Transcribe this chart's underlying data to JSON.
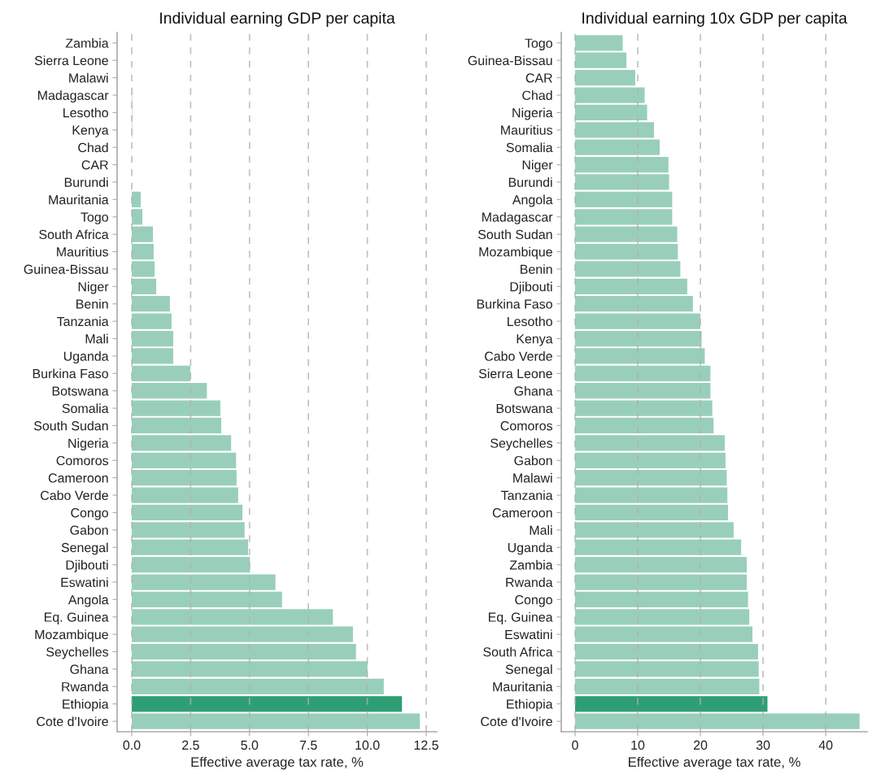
{
  "chart_data": [
    {
      "type": "bar",
      "orientation": "horizontal",
      "title": "Individual earning GDP per capita",
      "xlabel": "Effective average tax rate, %",
      "categories": [
        "Zambia",
        "Sierra Leone",
        "Malawi",
        "Madagascar",
        "Lesotho",
        "Kenya",
        "Chad",
        "CAR",
        "Burundi",
        "Mauritania",
        "Togo",
        "South Africa",
        "Mauritius",
        "Guinea-Bissau",
        "Niger",
        "Benin",
        "Tanzania",
        "Mali",
        "Uganda",
        "Burkina Faso",
        "Botswana",
        "Somalia",
        "South Sudan",
        "Nigeria",
        "Comoros",
        "Cameroon",
        "Cabo Verde",
        "Congo",
        "Gabon",
        "Senegal",
        "Djibouti",
        "Eswatini",
        "Angola",
        "Eq. Guinea",
        "Mozambique",
        "Seychelles",
        "Ghana",
        "Rwanda",
        "Ethiopia",
        "Cote d'Ivoire"
      ],
      "values": [
        0,
        0,
        0,
        0.02,
        0.02,
        0.02,
        0,
        0,
        0,
        0.38,
        0.45,
        0.9,
        0.93,
        0.97,
        1.04,
        1.62,
        1.69,
        1.76,
        1.76,
        2.49,
        3.19,
        3.76,
        3.8,
        4.22,
        4.43,
        4.45,
        4.52,
        4.7,
        4.79,
        4.94,
        5.02,
        6.1,
        6.38,
        8.54,
        9.39,
        9.52,
        10.01,
        10.7,
        11.47,
        12.23
      ],
      "colors": [
        "#99cfba",
        "#99cfba",
        "#99cfba",
        "#99cfba",
        "#99cfba",
        "#99cfba",
        "#99cfba",
        "#99cfba",
        "#99cfba",
        "#99cfba",
        "#99cfba",
        "#99cfba",
        "#99cfba",
        "#99cfba",
        "#99cfba",
        "#99cfba",
        "#99cfba",
        "#99cfba",
        "#99cfba",
        "#99cfba",
        "#99cfba",
        "#99cfba",
        "#99cfba",
        "#99cfba",
        "#99cfba",
        "#99cfba",
        "#99cfba",
        "#99cfba",
        "#99cfba",
        "#99cfba",
        "#99cfba",
        "#99cfba",
        "#99cfba",
        "#99cfba",
        "#99cfba",
        "#99cfba",
        "#99cfba",
        "#99cfba",
        "#2f9e74",
        "#99cfba"
      ],
      "xlim": [
        -0.62,
        12.95
      ],
      "xticks": [
        {
          "value": 0,
          "label": "0.0"
        },
        2.5,
        {
          "value": 5,
          "label": "5.0"
        },
        7.5,
        {
          "value": 10,
          "label": "10.0"
        },
        12.5
      ],
      "grid": "x"
    },
    {
      "type": "bar",
      "orientation": "horizontal",
      "title": "Individual earning 10x GDP per capita",
      "xlabel": "Effective average tax rate, %",
      "categories": [
        "Togo",
        "Guinea-Bissau",
        "CAR",
        "Chad",
        "Nigeria",
        "Mauritius",
        "Somalia",
        "Niger",
        "Burundi",
        "Angola",
        "Madagascar",
        "South Sudan",
        "Mozambique",
        "Benin",
        "Djibouti",
        "Burkina Faso",
        "Lesotho",
        "Kenya",
        "Cabo Verde",
        "Sierra Leone",
        "Ghana",
        "Botswana",
        "Comoros",
        "Seychelles",
        "Gabon",
        "Malawi",
        "Tanzania",
        "Cameroon",
        "Mali",
        "Uganda",
        "Zambia",
        "Rwanda",
        "Congo",
        "Eq. Guinea",
        "Eswatini",
        "South Africa",
        "Senegal",
        "Mauritania",
        "Ethiopia",
        "Cote d'Ivoire"
      ],
      "values": [
        7.6,
        8.2,
        9.6,
        11.1,
        11.5,
        12.6,
        13.5,
        14.9,
        15.0,
        15.5,
        15.5,
        16.3,
        16.4,
        16.8,
        17.9,
        18.8,
        20.0,
        20.2,
        20.7,
        21.6,
        21.6,
        21.9,
        22.1,
        23.9,
        24.0,
        24.2,
        24.3,
        24.4,
        25.3,
        26.5,
        27.4,
        27.4,
        27.6,
        27.8,
        28.3,
        29.2,
        29.3,
        29.4,
        30.7,
        45.4
      ],
      "colors": [
        "#99cfba",
        "#99cfba",
        "#99cfba",
        "#99cfba",
        "#99cfba",
        "#99cfba",
        "#99cfba",
        "#99cfba",
        "#99cfba",
        "#99cfba",
        "#99cfba",
        "#99cfba",
        "#99cfba",
        "#99cfba",
        "#99cfba",
        "#99cfba",
        "#99cfba",
        "#99cfba",
        "#99cfba",
        "#99cfba",
        "#99cfba",
        "#99cfba",
        "#99cfba",
        "#99cfba",
        "#99cfba",
        "#99cfba",
        "#99cfba",
        "#99cfba",
        "#99cfba",
        "#99cfba",
        "#99cfba",
        "#99cfba",
        "#99cfba",
        "#99cfba",
        "#99cfba",
        "#99cfba",
        "#99cfba",
        "#99cfba",
        "#2f9e74",
        "#99cfba"
      ],
      "xlim": [
        -2.2,
        46.6
      ],
      "xticks": [
        0,
        10,
        20,
        30,
        40
      ],
      "grid": "x"
    }
  ]
}
